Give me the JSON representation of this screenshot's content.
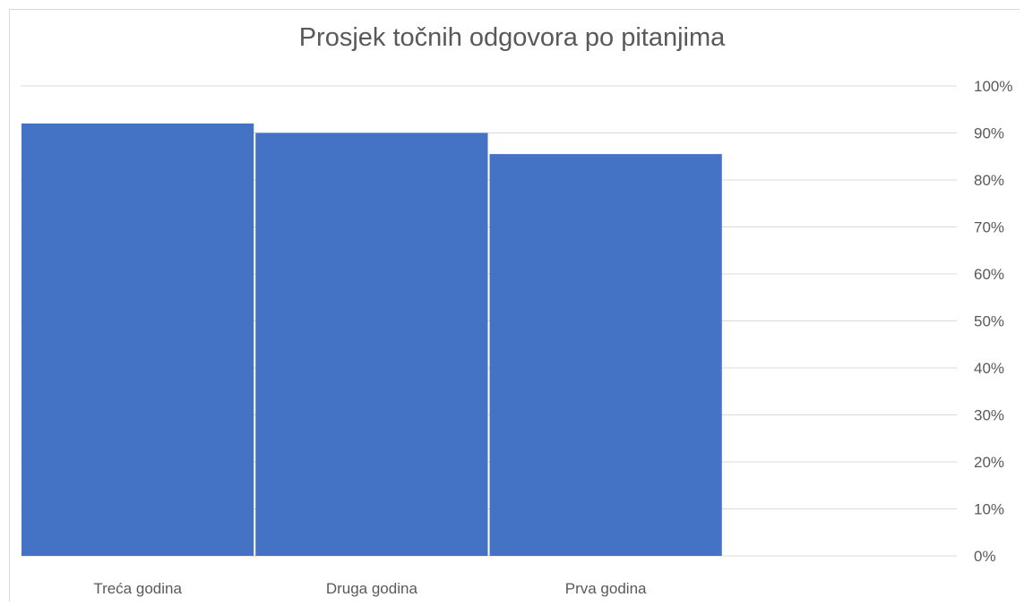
{
  "chart_data": {
    "type": "bar",
    "title": "Prosjek točnih odgovora po pitanjima",
    "xlabel": "",
    "ylabel": "",
    "categories": [
      "Treća godina",
      "Druga godina",
      "Prva godina"
    ],
    "values": [
      0.92,
      0.9,
      0.855
    ],
    "ylim": [
      0,
      1
    ],
    "y_ticks": [
      "0%",
      "10%",
      "20%",
      "30%",
      "40%",
      "50%",
      "60%",
      "70%",
      "80%",
      "90%",
      "100%"
    ],
    "y_axis_side": "right",
    "grid": true,
    "legend": "none",
    "colors": {
      "bar": "#4472c4",
      "grid": "#d9d9d9",
      "text": "#595959"
    }
  }
}
